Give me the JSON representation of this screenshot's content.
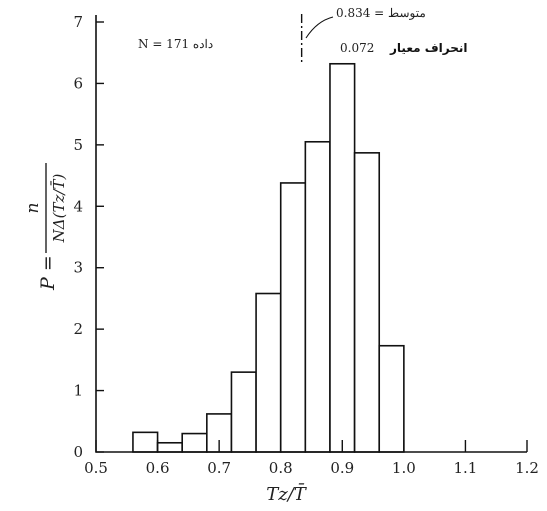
{
  "chart_data": {
    "type": "bar",
    "x_edges": [
      0.56,
      0.6,
      0.64,
      0.68,
      0.72,
      0.76,
      0.8,
      0.84,
      0.88,
      0.92,
      0.96,
      1.0
    ],
    "values": [
      0.32,
      0.15,
      0.3,
      0.62,
      1.3,
      2.58,
      4.38,
      5.05,
      6.32,
      4.87,
      1.73,
      0.15
    ],
    "xlim": [
      0.5,
      1.2
    ],
    "ylim": [
      0,
      7
    ],
    "x_ticks": [
      "0.5",
      "0.6",
      "0.7",
      "0.8",
      "0.9",
      "1.0",
      "1.1",
      "1.2"
    ],
    "y_ticks": [
      "0",
      "1",
      "2",
      "3",
      "4",
      "5",
      "6",
      "7"
    ],
    "xlabel": "Tz/T̄",
    "ylabel_lhs": "P =",
    "ylabel_num": "n",
    "ylabel_den": "NΔ(Tz/T̄)",
    "mean_x": 0.834,
    "annotations": {
      "sample_label": "N = 171 داده",
      "mean_label": "0.834 = متوسط",
      "std_label": "انحراف معیار",
      "std_value": "0.072"
    }
  }
}
